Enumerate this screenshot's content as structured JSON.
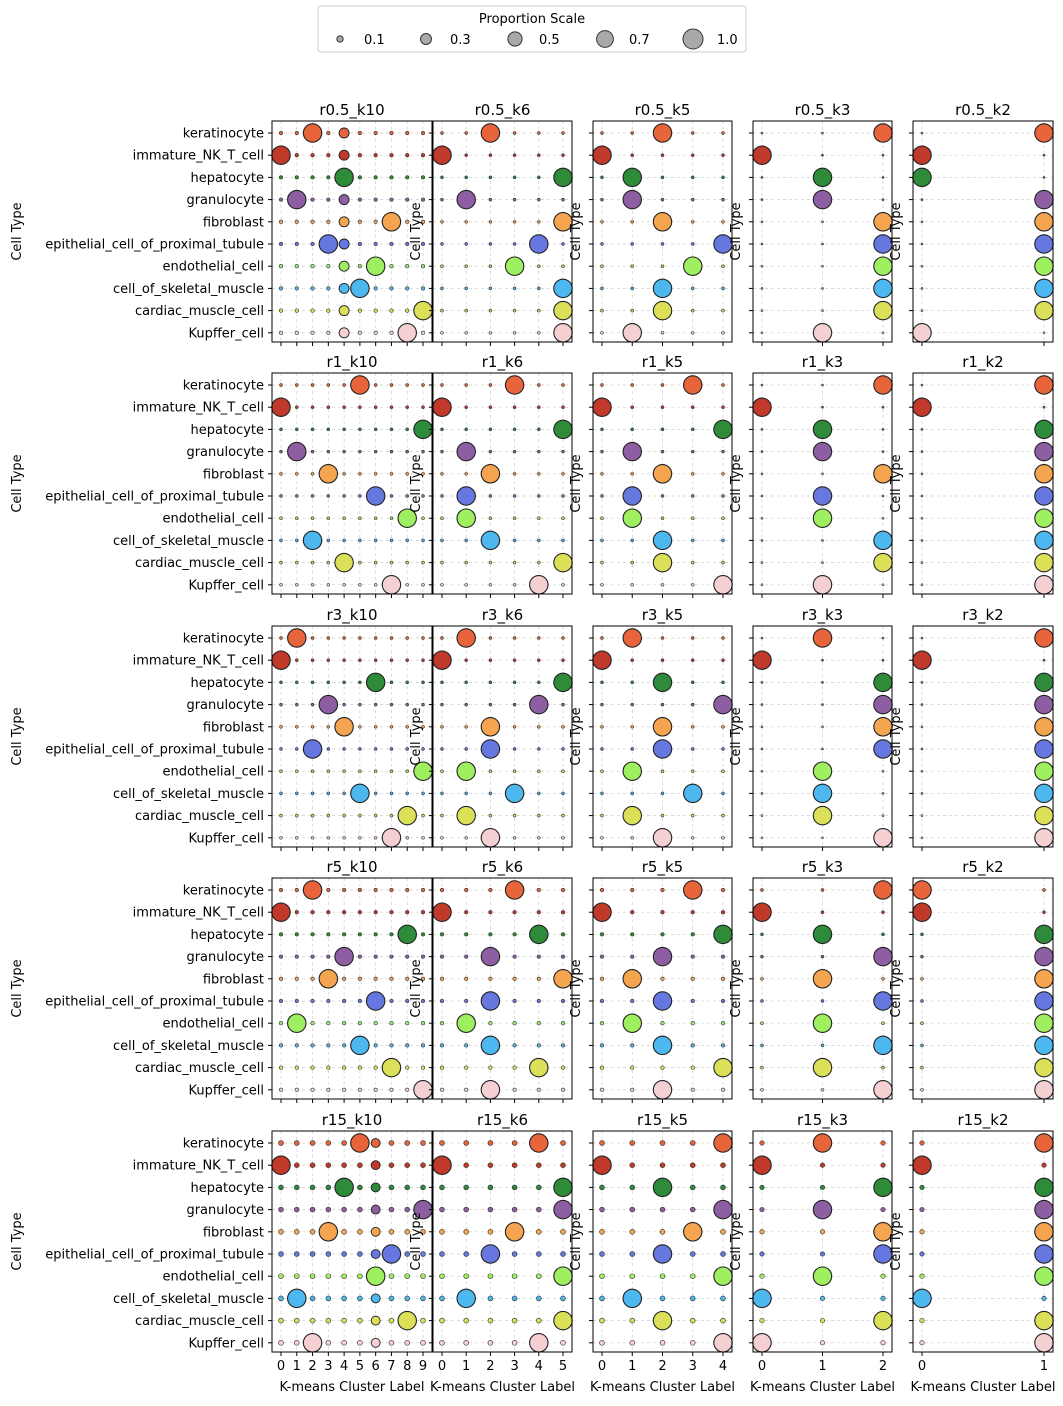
{
  "legend": {
    "title": "Proportion Scale",
    "entries": [
      {
        "label": "0.1",
        "value": 0.1
      },
      {
        "label": "0.3",
        "value": 0.3
      },
      {
        "label": "0.5",
        "value": 0.5
      },
      {
        "label": "0.7",
        "value": 0.7
      },
      {
        "label": "1.0",
        "value": 1.0
      }
    ]
  },
  "chart_data": {
    "type": "scatter",
    "subtype": "dot-plot grid (marker size = proportion)",
    "xlabel": "K-means Cluster Label",
    "ylabel": "Cell Type",
    "cell_types": [
      "keratinocyte",
      "immature_NK_T_cell",
      "hepatocyte",
      "granulocyte",
      "fibroblast",
      "epithelial_cell_of_proximal_tubule",
      "endothelial_cell",
      "cell_of_skeletal_muscle",
      "cardiac_muscle_cell",
      "Kupffer_cell"
    ],
    "cell_type_colors": [
      "#e8643a",
      "#c0392b",
      "#2e8b3a",
      "#8e5ea2",
      "#f5a550",
      "#6678e0",
      "#9ef060",
      "#4db8f0",
      "#dce058",
      "#f5d0d2"
    ],
    "grid": true,
    "legend_position": "top-center",
    "panels": [
      {
        "title": "r0.5_k10",
        "k": 10,
        "major": [
          2,
          0,
          4,
          1,
          7,
          3,
          6,
          5,
          9,
          8
        ],
        "minor": [
          [
            4,
            0.25
          ]
        ],
        "background": 0.03
      },
      {
        "title": "r0.5_k6",
        "k": 6,
        "major": [
          2,
          0,
          5,
          1,
          5,
          4,
          3,
          5,
          5,
          5
        ],
        "minor": [],
        "background": 0.02
      },
      {
        "title": "r0.5_k5",
        "k": 5,
        "major": [
          2,
          0,
          1,
          1,
          2,
          4,
          3,
          2,
          2,
          1
        ],
        "minor": [],
        "background": 0.02
      },
      {
        "title": "r0.5_k3",
        "k": 3,
        "major": [
          2,
          0,
          1,
          1,
          2,
          2,
          2,
          2,
          2,
          1
        ],
        "minor": [],
        "background": 0.01
      },
      {
        "title": "r0.5_k2",
        "k": 2,
        "major": [
          1,
          0,
          0,
          1,
          1,
          1,
          1,
          1,
          1,
          0
        ],
        "minor": [],
        "background": 0.01
      },
      {
        "title": "r1_k10",
        "k": 10,
        "major": [
          5,
          0,
          9,
          1,
          3,
          6,
          8,
          2,
          4,
          7
        ],
        "minor": [],
        "background": 0.02
      },
      {
        "title": "r1_k6",
        "k": 6,
        "major": [
          3,
          0,
          5,
          1,
          2,
          1,
          1,
          2,
          5,
          4
        ],
        "minor": [],
        "background": 0.02
      },
      {
        "title": "r1_k5",
        "k": 5,
        "major": [
          3,
          0,
          4,
          1,
          2,
          1,
          1,
          2,
          2,
          4
        ],
        "minor": [],
        "background": 0.02
      },
      {
        "title": "r1_k3",
        "k": 3,
        "major": [
          2,
          0,
          1,
          1,
          2,
          1,
          1,
          2,
          2,
          1
        ],
        "minor": [],
        "background": 0.01
      },
      {
        "title": "r1_k2",
        "k": 2,
        "major": [
          1,
          0,
          1,
          1,
          1,
          1,
          1,
          1,
          1,
          1
        ],
        "minor": [],
        "background": 0.01
      },
      {
        "title": "r3_k10",
        "k": 10,
        "major": [
          1,
          0,
          6,
          3,
          4,
          2,
          9,
          5,
          8,
          7
        ],
        "minor": [],
        "background": 0.02
      },
      {
        "title": "r3_k6",
        "k": 6,
        "major": [
          1,
          0,
          5,
          4,
          2,
          2,
          1,
          3,
          1,
          2
        ],
        "minor": [],
        "background": 0.02
      },
      {
        "title": "r3_k5",
        "k": 5,
        "major": [
          1,
          0,
          2,
          4,
          2,
          2,
          1,
          3,
          1,
          2
        ],
        "minor": [],
        "background": 0.02
      },
      {
        "title": "r3_k3",
        "k": 3,
        "major": [
          1,
          0,
          2,
          2,
          2,
          2,
          1,
          1,
          1,
          2
        ],
        "minor": [],
        "background": 0.01
      },
      {
        "title": "r3_k2",
        "k": 2,
        "major": [
          1,
          0,
          1,
          1,
          1,
          1,
          1,
          1,
          1,
          1
        ],
        "minor": [],
        "background": 0.01
      },
      {
        "title": "r5_k10",
        "k": 10,
        "major": [
          2,
          0,
          8,
          4,
          3,
          6,
          1,
          5,
          7,
          9
        ],
        "minor": [],
        "background": 0.03
      },
      {
        "title": "r5_k6",
        "k": 6,
        "major": [
          3,
          0,
          4,
          2,
          5,
          2,
          1,
          2,
          4,
          2
        ],
        "minor": [],
        "background": 0.03
      },
      {
        "title": "r5_k5",
        "k": 5,
        "major": [
          3,
          0,
          4,
          2,
          1,
          2,
          1,
          2,
          4,
          2
        ],
        "minor": [],
        "background": 0.03
      },
      {
        "title": "r5_k3",
        "k": 3,
        "major": [
          2,
          0,
          1,
          2,
          1,
          2,
          1,
          2,
          1,
          2
        ],
        "minor": [],
        "background": 0.02
      },
      {
        "title": "r5_k2",
        "k": 2,
        "major": [
          0,
          0,
          1,
          1,
          1,
          1,
          1,
          1,
          1,
          1
        ],
        "minor": [],
        "background": 0.02
      },
      {
        "title": "r15_k10",
        "k": 10,
        "major": [
          5,
          0,
          4,
          9,
          3,
          7,
          6,
          1,
          8,
          2
        ],
        "minor": [
          [
            6,
            0.2
          ]
        ],
        "background": 0.06
      },
      {
        "title": "r15_k6",
        "k": 6,
        "major": [
          4,
          0,
          5,
          5,
          3,
          2,
          5,
          1,
          5,
          4
        ],
        "minor": [],
        "background": 0.06
      },
      {
        "title": "r15_k5",
        "k": 5,
        "major": [
          4,
          0,
          2,
          4,
          3,
          2,
          4,
          1,
          2,
          4
        ],
        "minor": [],
        "background": 0.06
      },
      {
        "title": "r15_k3",
        "k": 3,
        "major": [
          1,
          0,
          2,
          1,
          2,
          2,
          1,
          0,
          2,
          0
        ],
        "minor": [],
        "background": 0.05
      },
      {
        "title": "r15_k2",
        "k": 2,
        "major": [
          1,
          0,
          1,
          1,
          1,
          1,
          1,
          0,
          1,
          1
        ],
        "minor": [],
        "background": 0.05
      }
    ]
  }
}
